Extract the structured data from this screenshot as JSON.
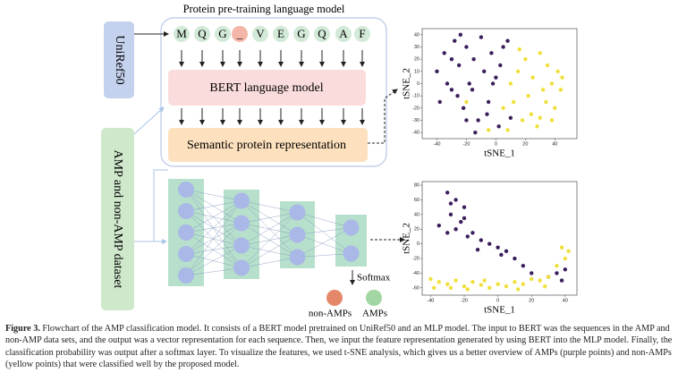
{
  "figure": {
    "title": "Protein pre-training language model",
    "tokens": [
      "M",
      "Q",
      "G",
      "_",
      "V",
      "E",
      "G",
      "Q",
      "A",
      "F"
    ],
    "uniref": "UniRef50",
    "bert": "BERT language model",
    "semantic": "Semantic protein representation",
    "dataset": "AMP and non-AMP dataset",
    "softmax": "Softmax",
    "legend": [
      "non-AMPs",
      "AMPs"
    ]
  },
  "chart_data": [
    {
      "type": "scatter",
      "xlabel": "tSNE_1",
      "ylabel": "tSNE_2",
      "xlim": [
        -50,
        55
      ],
      "xticks": [
        -40,
        -20,
        0,
        20,
        40
      ],
      "ylim": [
        -45,
        45
      ],
      "yticks": [
        -40,
        -30,
        -20,
        -10,
        0,
        10,
        20,
        30,
        40
      ],
      "series": [
        {
          "color": "#3b1f5c",
          "x": [
            -40,
            -35,
            -30,
            -28,
            -25,
            -22,
            -20,
            -18,
            -15,
            -12,
            -10,
            -8,
            -5,
            -3,
            0,
            2,
            5,
            -38,
            -33,
            -26,
            -16,
            -6,
            3,
            8,
            -24,
            -14,
            -30,
            10,
            -2,
            -20
          ],
          "values": [
            10,
            25,
            -5,
            35,
            15,
            -20,
            30,
            0,
            20,
            -30,
            38,
            10,
            -15,
            25,
            5,
            -35,
            30,
            -15,
            0,
            -10,
            -5,
            -25,
            15,
            35,
            40,
            -40,
            20,
            -28,
            0,
            -30
          ]
        },
        {
          "color": "#efe03a",
          "x": [
            5,
            10,
            15,
            18,
            20,
            22,
            25,
            28,
            30,
            32,
            35,
            38,
            40,
            42,
            45,
            12,
            24,
            34,
            44,
            8,
            -5,
            -20,
            30,
            16,
            38
          ],
          "values": [
            -20,
            0,
            10,
            -30,
            20,
            -10,
            5,
            -35,
            25,
            -5,
            15,
            0,
            -20,
            10,
            5,
            -15,
            -25,
            -15,
            -5,
            -38,
            -38,
            -15,
            -28,
            28,
            -30
          ]
        }
      ]
    },
    {
      "type": "scatter",
      "xlabel": "tSNE_1",
      "ylabel": "tSNE_2",
      "xlim": [
        -45,
        47
      ],
      "xticks": [
        -40,
        -20,
        0,
        20,
        40
      ],
      "ylim": [
        -70,
        85
      ],
      "yticks": [
        -60,
        -40,
        -20,
        0,
        20,
        40,
        60,
        80
      ],
      "series": [
        {
          "color": "#3b1f5c",
          "x": [
            -30,
            -25,
            -20,
            -28,
            -22,
            -35,
            -30,
            -25,
            -18,
            -10,
            -5,
            0,
            5,
            10,
            15,
            -15,
            -20,
            -28,
            30,
            35,
            40,
            38,
            -12,
            2,
            20
          ],
          "values": [
            70,
            60,
            50,
            40,
            30,
            25,
            15,
            20,
            10,
            5,
            0,
            -5,
            -10,
            -20,
            -30,
            15,
            35,
            55,
            -45,
            -40,
            -35,
            -50,
            -8,
            -15,
            -40
          ]
        },
        {
          "color": "#efe03a",
          "x": [
            -40,
            -35,
            -30,
            -25,
            -20,
            -15,
            -10,
            -5,
            0,
            5,
            10,
            15,
            20,
            25,
            30,
            35,
            40,
            42,
            38,
            -38,
            -28,
            -18,
            -8,
            12,
            28
          ],
          "values": [
            -48,
            -52,
            -55,
            -50,
            -58,
            -52,
            -56,
            -60,
            -55,
            -58,
            -52,
            -55,
            -48,
            -50,
            -45,
            -30,
            -20,
            -10,
            -5,
            -60,
            -60,
            -62,
            -50,
            -62,
            -58
          ]
        }
      ]
    }
  ],
  "caption": {
    "label": "Figure 3.",
    "text": "Flowchart of the AMP classification model. It consists of a BERT model pretrained on UniRef50 and an MLP model. The input to BERT was the sequences in the AMP and non-AMP data sets, and the output was a vector representation for each sequence. Then, we input the feature representation generated by using BERT into the MLP model. Finally, the classification probability was output after a softmax layer. To visualize the features, we used t-SNE analysis, which gives us a better overview of AMPs (purple points) and non-AMPs (yellow points) that were classified well by the proposed model."
  }
}
